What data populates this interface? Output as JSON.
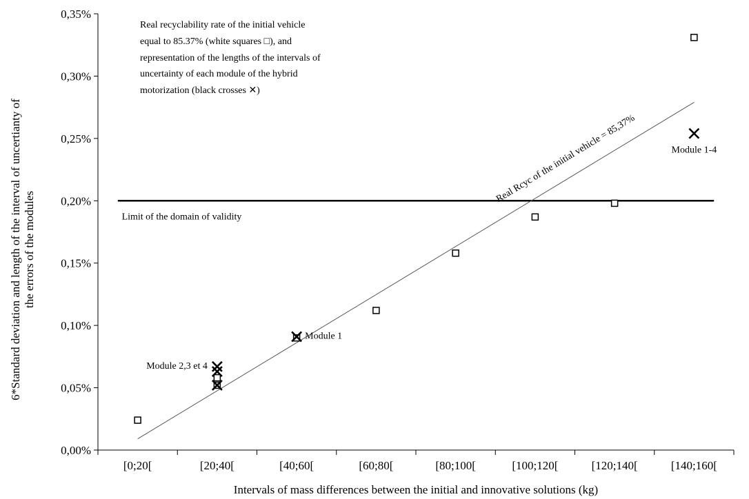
{
  "chart_data": {
    "type": "scatter",
    "categories": [
      "[0;20[",
      "[20;40[",
      "[40;60[",
      "[60;80[",
      "[80;100[",
      "[100;120[",
      "[120;140[",
      "[140;160["
    ],
    "xlabel": "Intervals of mass differences between the initial and innovative solutions (kg)",
    "ylabel_lines": [
      "6*Standard deviation and length of the interval of uncertianty of",
      "the errors of the modules"
    ],
    "y_ticks": [
      "0,00%",
      "0,05%",
      "0,10%",
      "0,15%",
      "0,20%",
      "0,25%",
      "0,30%",
      "0,35%"
    ],
    "ylim": [
      0,
      0.35
    ],
    "y_unit": "%",
    "series": [
      {
        "marker": "white-square",
        "points": [
          {
            "x": 0,
            "y": 0.024
          },
          {
            "x": 1,
            "y": 0.052
          },
          {
            "x": 1,
            "y": 0.058
          },
          {
            "x": 2,
            "y": 0.09
          },
          {
            "x": 3,
            "y": 0.112
          },
          {
            "x": 4,
            "y": 0.158
          },
          {
            "x": 5,
            "y": 0.187
          },
          {
            "x": 6,
            "y": 0.198
          },
          {
            "x": 7,
            "y": 0.331
          }
        ]
      },
      {
        "marker": "black-cross",
        "points": [
          {
            "x": 1,
            "y": 0.067
          },
          {
            "x": 1,
            "y": 0.063
          },
          {
            "x": 1,
            "y": 0.052
          },
          {
            "x": 2,
            "y": 0.091
          },
          {
            "x": 7,
            "y": 0.254
          }
        ]
      }
    ],
    "trendline": {
      "label": "Real Rcyc of the initial vehicle = 85,37%",
      "from": {
        "x": 0,
        "y": 0.009
      },
      "to": {
        "x": 7,
        "y": 0.279
      }
    },
    "limit_line": {
      "y": 0.2,
      "label": "Limit of the domain of validity"
    },
    "point_labels": [
      {
        "text": "Module 1",
        "anchor": {
          "x": 2,
          "y": 0.091
        },
        "side": "right"
      },
      {
        "text": "Module 2,3 et 4",
        "anchor": {
          "x": 1,
          "y": 0.067
        },
        "side": "left"
      },
      {
        "text": "Module 1-4",
        "anchor": {
          "x": 7,
          "y": 0.254
        },
        "side": "below"
      }
    ],
    "annotation_lines": [
      "Real recyclability rate of the initial vehicle",
      "equal to 85.37% (white squares □), and",
      "representation of the lengths of the intervals of",
      "uncertainty of each module of the hybrid",
      "motorization (black crosses ✕)"
    ],
    "grid": false,
    "legend": "none",
    "colors": {
      "line": "#000000",
      "trend": "#555555",
      "marker_fill": "#ffffff",
      "background": "#ffffff"
    }
  }
}
